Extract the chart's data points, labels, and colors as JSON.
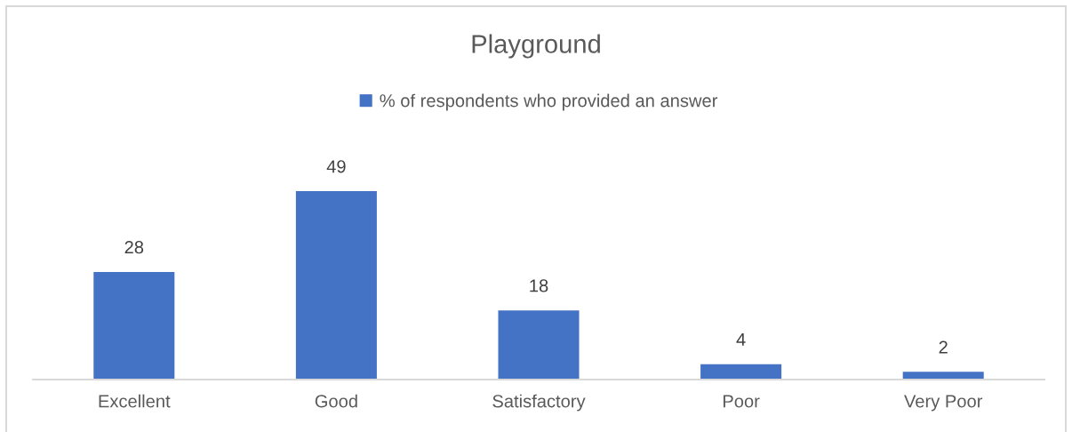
{
  "chart_data": {
    "type": "bar",
    "title": "Playground",
    "categories": [
      "Excellent",
      "Good",
      "Satisfactory",
      "Poor",
      "Very Poor"
    ],
    "series": [
      {
        "name": "% of respondents who provided an answer",
        "color": "#4472c4",
        "values": [
          28,
          49,
          18,
          4,
          2
        ]
      }
    ],
    "data_labels": true,
    "legend": "top",
    "grid": false,
    "tick_labels": "x"
  }
}
